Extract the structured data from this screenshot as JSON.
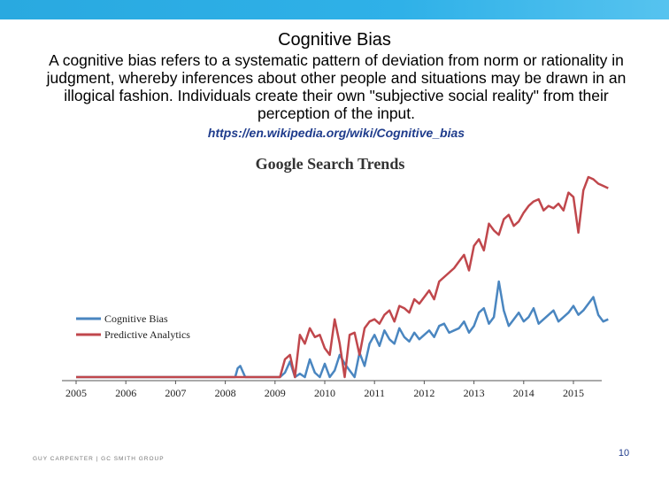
{
  "slide": {
    "title": "Cognitive Bias",
    "body": "A cognitive bias refers to a systematic pattern of deviation from norm or rationality in judgment, whereby inferences about other people and situations may be drawn in an illogical fashion. Individuals create their own \"subjective social reality\" from their perception of the input.",
    "link": "https://en.wikipedia.org/wiki/Cognitive_bias",
    "footer": "GUY CARPENTER | GC SMITH GROUP",
    "page_number": "10"
  },
  "colors": {
    "band": "#29a9e0",
    "cognitive_bias": "#4a86c0",
    "predictive_analytics": "#c0474c",
    "link": "#1f3c8c"
  },
  "chart_data": {
    "type": "line",
    "title": "Google Search Trends",
    "xlabel": "",
    "ylabel": "",
    "x": [
      2005.0,
      2005.5,
      2006.0,
      2006.5,
      2007.0,
      2007.5,
      2008.0,
      2008.2,
      2008.25,
      2008.3,
      2008.4,
      2008.6,
      2008.8,
      2009.0,
      2009.03,
      2009.1,
      2009.2,
      2009.3,
      2009.4,
      2009.5,
      2009.6,
      2009.7,
      2009.8,
      2009.9,
      2010.0,
      2010.1,
      2010.2,
      2010.3,
      2010.4,
      2010.5,
      2010.6,
      2010.7,
      2010.8,
      2010.9,
      2011.0,
      2011.1,
      2011.2,
      2011.3,
      2011.4,
      2011.5,
      2011.6,
      2011.7,
      2011.8,
      2011.9,
      2012.0,
      2012.1,
      2012.2,
      2012.3,
      2012.4,
      2012.5,
      2012.6,
      2012.7,
      2012.8,
      2012.9,
      2013.0,
      2013.1,
      2013.2,
      2013.3,
      2013.4,
      2013.5,
      2013.6,
      2013.7,
      2013.8,
      2013.9,
      2014.0,
      2014.1,
      2014.2,
      2014.3,
      2014.4,
      2014.5,
      2014.6,
      2014.7,
      2014.8,
      2014.9,
      2015.0,
      2015.1,
      2015.2,
      2015.3,
      2015.4,
      2015.5,
      2015.6,
      2015.7
    ],
    "series": [
      {
        "name": "Cognitive Bias",
        "values": [
          0,
          0,
          0,
          0,
          0,
          0,
          0,
          0,
          8,
          10,
          0,
          0,
          0,
          0,
          0,
          0,
          4,
          14,
          0,
          3,
          0,
          16,
          4,
          0,
          12,
          0,
          6,
          20,
          12,
          6,
          0,
          22,
          10,
          30,
          38,
          28,
          42,
          34,
          30,
          44,
          36,
          32,
          40,
          34,
          38,
          42,
          36,
          46,
          48,
          40,
          42,
          44,
          50,
          40,
          46,
          58,
          62,
          48,
          54,
          86,
          60,
          46,
          52,
          58,
          50,
          54,
          62,
          48,
          52,
          56,
          60,
          50,
          54,
          58,
          64,
          56,
          60,
          66,
          72,
          56,
          50,
          52
        ]
      },
      {
        "name": "Predictive Analytics",
        "values": [
          0,
          0,
          0,
          0,
          0,
          0,
          0,
          0,
          0,
          0,
          0,
          0,
          0,
          0,
          0,
          0,
          16,
          20,
          0,
          38,
          30,
          44,
          36,
          38,
          26,
          20,
          52,
          30,
          0,
          38,
          40,
          20,
          44,
          50,
          52,
          48,
          56,
          60,
          50,
          64,
          62,
          58,
          70,
          66,
          72,
          78,
          70,
          86,
          90,
          94,
          98,
          104,
          110,
          96,
          118,
          124,
          114,
          138,
          132,
          128,
          142,
          146,
          136,
          140,
          148,
          154,
          158,
          160,
          150,
          154,
          152,
          156,
          150,
          166,
          162,
          130,
          168,
          180,
          178,
          174,
          172,
          170
        ]
      }
    ],
    "xticks": [
      "2005",
      "2006",
      "2007",
      "2008",
      "2009",
      "2010",
      "2011",
      "2012",
      "2013",
      "2014",
      "2015"
    ],
    "legend": "upper-left",
    "grid": false
  }
}
